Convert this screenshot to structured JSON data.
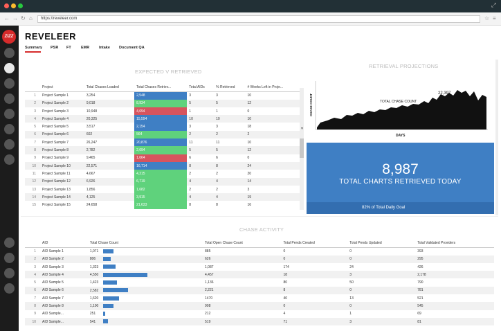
{
  "browser": {
    "url": "https://reveleer.com"
  },
  "app": {
    "title": "REVELEER",
    "logo_text": "ZIZZ"
  },
  "tabs": [
    {
      "label": "Summary"
    },
    {
      "label": "PSR"
    },
    {
      "label": "FT"
    },
    {
      "label": "EMR"
    },
    {
      "label": "Intake"
    },
    {
      "label": "Document QA"
    }
  ],
  "colors": {
    "accent": "#d62b2b",
    "blue": "#3f7fc4",
    "green": "#5fd27c",
    "red": "#d7545e",
    "sidebar": "#1c1c1c"
  },
  "expected_table": {
    "title": "EXPECTED v RETRIEVED",
    "headers": [
      "",
      "Project",
      "Total Chases Loaded",
      "Total Chases Retriev...",
      "Total AIDs",
      "% Retrieved",
      "# Weeks Left in Proje..."
    ],
    "rows": [
      [
        "1",
        "Project Sample 1",
        "3,254",
        "2,548",
        "3",
        "3",
        "10"
      ],
      [
        "2",
        "Project Sample 2",
        "9,018",
        "8,934",
        "5",
        "5",
        "12"
      ],
      [
        "3",
        "Project Sample 3",
        "10,948",
        "4,694",
        "1",
        "1",
        "0"
      ],
      [
        "4",
        "Project Sample 4",
        "20,325",
        "15,594",
        "10",
        "10",
        "10"
      ],
      [
        "5",
        "Project Sample 5",
        "3,517",
        "2,154",
        "3",
        "3",
        "18"
      ],
      [
        "6",
        "Project Sample 6",
        "602",
        "564",
        "2",
        "2",
        "2"
      ],
      [
        "7",
        "Project Sample 7",
        "26,247",
        "20,876",
        "11",
        "11",
        "10"
      ],
      [
        "8",
        "Project Sample 8",
        "2,782",
        "2,694",
        "5",
        "5",
        "12"
      ],
      [
        "9",
        "Project Sample 9",
        "9,465",
        "1,064",
        "6",
        "6",
        "0"
      ],
      [
        "10",
        "Project Sample 10",
        "22,571",
        "16,714",
        "8",
        "8",
        "24"
      ],
      [
        "11",
        "Project Sample 11",
        "4,667",
        "4,215",
        "2",
        "2",
        "20"
      ],
      [
        "12",
        "Project Sample 12",
        "6,926",
        "6,719",
        "4",
        "4",
        "14"
      ],
      [
        "13",
        "Project Sample 13",
        "1,856",
        "1,682",
        "2",
        "2",
        "3"
      ],
      [
        "14",
        "Project Sample 14",
        "4,125",
        "3,915",
        "4",
        "4",
        "19"
      ],
      [
        "15",
        "Project Sample 15",
        "24,658",
        "21,633",
        "8",
        "8",
        "16"
      ]
    ],
    "retrieved_status": [
      "blue",
      "green",
      "red",
      "blue",
      "blue",
      "green",
      "blue",
      "green",
      "red",
      "blue",
      "green",
      "green",
      "green",
      "green",
      "green"
    ]
  },
  "projections": {
    "title": "RETRIEVAL PROJECTIONS",
    "ylabel": "CHASE COUNT",
    "xlabel": "DAYS",
    "series_label": "TOTAL CHASE COUNT",
    "peak_label": "22,397"
  },
  "today": {
    "value": "8,987",
    "label": "TOTAL CHARTS RETRIEVED TODAY",
    "goal": "82% of Total Daily Goal"
  },
  "chase_activity": {
    "title": "CHASE ACTIVITY",
    "headers": [
      "",
      "AID",
      "Total Chase Count",
      "Total Open Chase Count",
      "Total Pends Created",
      "Total Pends Updated",
      "Total Validated Providers"
    ],
    "rows": [
      [
        "1",
        "AID Sample 1",
        "1,071",
        "885",
        "0",
        "0",
        "393"
      ],
      [
        "2",
        "AID Sample 2",
        "806",
        "626",
        "0",
        "0",
        "295"
      ],
      [
        "3",
        "AID Sample 3",
        "1,323",
        "1,087",
        "174",
        "24",
        "426"
      ],
      [
        "4",
        "AID Sample 4",
        "4,550",
        "4,457",
        "18",
        "3",
        "2,178"
      ],
      [
        "5",
        "AID Sample 5",
        "1,423",
        "1,136",
        "80",
        "50",
        "790"
      ],
      [
        "6",
        "AID Sample 6",
        "2,582",
        "2,221",
        "8",
        "0",
        "781"
      ],
      [
        "7",
        "AID Sample 7",
        "1,620",
        "1470",
        "40",
        "13",
        "521"
      ],
      [
        "8",
        "AID Sample 8",
        "1,100",
        "908",
        "0",
        "0",
        "545"
      ],
      [
        "9",
        "AID Sample...",
        "251",
        "212",
        "4",
        "1",
        "69"
      ],
      [
        "10",
        "AID Sample...",
        "541",
        "519",
        "71",
        "3",
        "81"
      ]
    ],
    "chase_bar_values": [
      1071,
      806,
      1323,
      4550,
      1423,
      2582,
      1620,
      1100,
      251,
      541
    ]
  }
}
